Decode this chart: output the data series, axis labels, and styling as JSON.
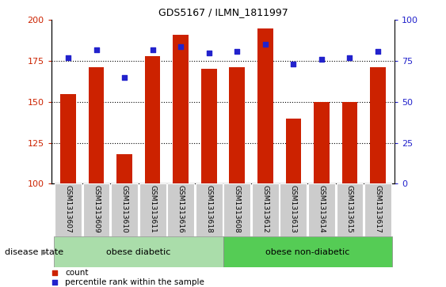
{
  "title": "GDS5167 / ILMN_1811997",
  "samples": [
    "GSM1313607",
    "GSM1313609",
    "GSM1313610",
    "GSM1313611",
    "GSM1313616",
    "GSM1313618",
    "GSM1313608",
    "GSM1313612",
    "GSM1313613",
    "GSM1313614",
    "GSM1313615",
    "GSM1313617"
  ],
  "counts": [
    155,
    171,
    118,
    178,
    191,
    170,
    171,
    195,
    140,
    150,
    150,
    171
  ],
  "percentiles": [
    77,
    82,
    65,
    82,
    84,
    80,
    81,
    85,
    73,
    76,
    77,
    81
  ],
  "ylim_left": [
    100,
    200
  ],
  "ylim_right": [
    0,
    100
  ],
  "yticks_left": [
    100,
    125,
    150,
    175,
    200
  ],
  "yticks_right": [
    0,
    25,
    50,
    75,
    100
  ],
  "bar_color": "#cc2200",
  "dot_color": "#2222cc",
  "tick_label_bg": "#cccccc",
  "group1_label": "obese diabetic",
  "group2_label": "obese non-diabetic",
  "group1_color": "#aaddaa",
  "group2_color": "#55cc55",
  "group1_count": 6,
  "group2_count": 6,
  "disease_state_label": "disease state",
  "legend_count_label": "count",
  "legend_pct_label": "percentile rank within the sample",
  "bar_width": 0.55,
  "figsize": [
    5.63,
    3.63
  ],
  "dpi": 100
}
